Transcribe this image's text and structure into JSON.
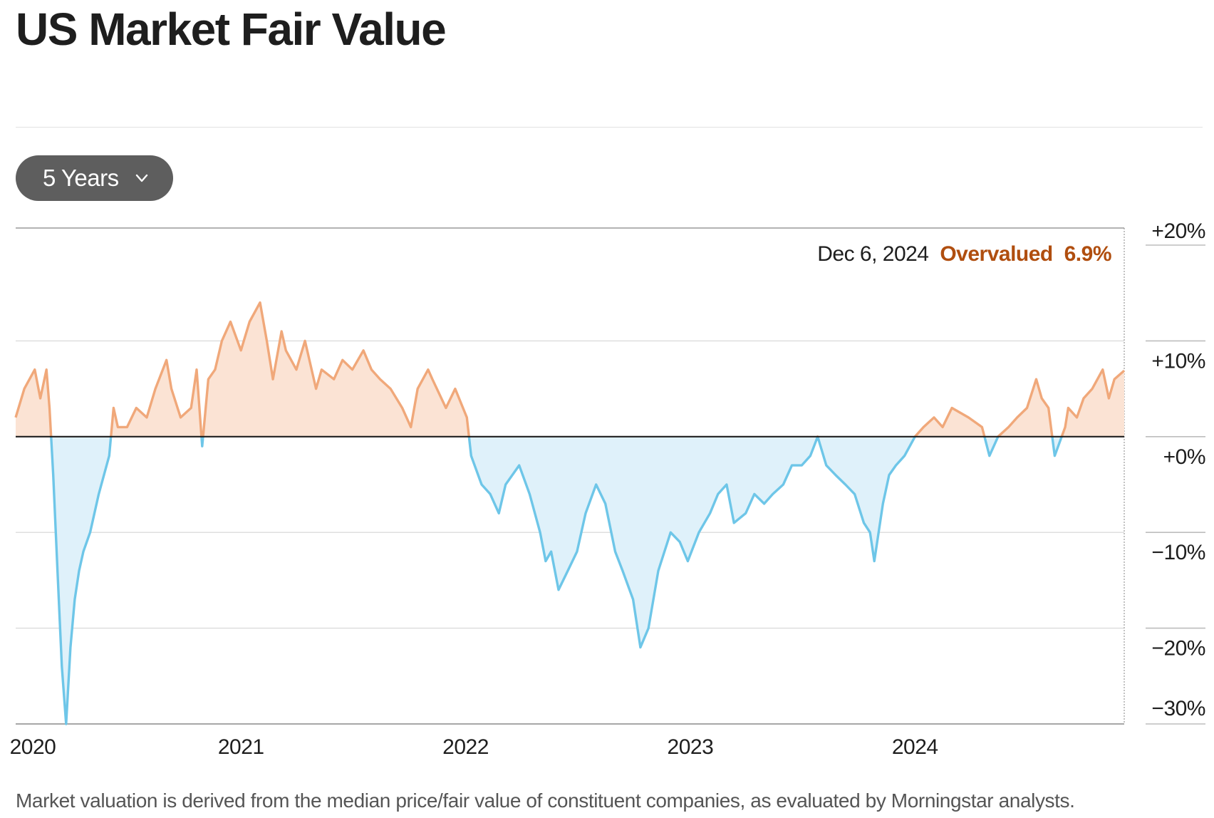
{
  "title": "US Market Fair Value",
  "range_selector": {
    "label": "5 Years",
    "icon": "chevron-down-icon"
  },
  "footnote": "Market valuation is derived from the median price/fair value of constituent companies, as evaluated by Morningstar analysts.",
  "colors": {
    "overvalued_line": "#f0a87a",
    "overvalued_fill": "#fbe3d4",
    "undervalued_line": "#6ec6e8",
    "undervalued_fill": "#dff1fa",
    "annotation_status": "#b04e0f",
    "baseline": "#1e1e1e"
  },
  "chart_data": {
    "type": "area",
    "title": "US Market Fair Value",
    "xlabel": "",
    "ylabel": "",
    "y_unit": "%",
    "ylim": [
      -30,
      20
    ],
    "xlim": [
      "2020-01-01",
      "2024-12-06"
    ],
    "grid": true,
    "x_ticks": [
      "2020",
      "2021",
      "2022",
      "2023",
      "2024"
    ],
    "y_ticks": [
      "+20%",
      "+10%",
      "+0%",
      "−10%",
      "−20%",
      "−30%"
    ],
    "annotation": {
      "date": "Dec 6, 2024",
      "status": "Overvalued",
      "value": "6.9%"
    },
    "series": [
      {
        "x": [
          "2020-01-01",
          "2020-01-15",
          "2020-02-01",
          "2020-02-10",
          "2020-02-20",
          "2020-02-25",
          "2020-03-02",
          "2020-03-09",
          "2020-03-16",
          "2020-03-23",
          "2020-03-30",
          "2020-04-06",
          "2020-04-13",
          "2020-04-20",
          "2020-05-01",
          "2020-05-15",
          "2020-06-01",
          "2020-06-08",
          "2020-06-15",
          "2020-06-30",
          "2020-07-15",
          "2020-08-01",
          "2020-08-15",
          "2020-09-02",
          "2020-09-10",
          "2020-09-25",
          "2020-10-12",
          "2020-10-21",
          "2020-10-30",
          "2020-11-09",
          "2020-11-20",
          "2020-12-01",
          "2020-12-15",
          "2021-01-01",
          "2021-01-15",
          "2021-02-01",
          "2021-02-12",
          "2021-02-22",
          "2021-03-08",
          "2021-03-15",
          "2021-04-01",
          "2021-04-15",
          "2021-05-03",
          "2021-05-12",
          "2021-06-01",
          "2021-06-15",
          "2021-07-01",
          "2021-07-19",
          "2021-08-01",
          "2021-08-15",
          "2021-09-01",
          "2021-09-20",
          "2021-10-04",
          "2021-10-15",
          "2021-11-01",
          "2021-11-08",
          "2021-11-30",
          "2021-12-15",
          "2022-01-03",
          "2022-01-10",
          "2022-01-27",
          "2022-02-10",
          "2022-02-24",
          "2022-03-07",
          "2022-03-29",
          "2022-04-15",
          "2022-05-02",
          "2022-05-11",
          "2022-05-20",
          "2022-06-01",
          "2022-06-16",
          "2022-07-01",
          "2022-07-15",
          "2022-08-01",
          "2022-08-16",
          "2022-09-01",
          "2022-09-13",
          "2022-09-30",
          "2022-10-12",
          "2022-10-25",
          "2022-11-10",
          "2022-11-30",
          "2022-12-15",
          "2022-12-28",
          "2023-01-15",
          "2023-02-02",
          "2023-02-15",
          "2023-03-01",
          "2023-03-13",
          "2023-04-01",
          "2023-04-15",
          "2023-05-01",
          "2023-05-15",
          "2023-06-01",
          "2023-06-15",
          "2023-07-01",
          "2023-07-15",
          "2023-07-27",
          "2023-08-10",
          "2023-08-25",
          "2023-09-10",
          "2023-09-25",
          "2023-10-10",
          "2023-10-20",
          "2023-10-27",
          "2023-11-10",
          "2023-11-20",
          "2023-12-01",
          "2023-12-15",
          "2024-01-01",
          "2024-01-15",
          "2024-02-01",
          "2024-02-15",
          "2024-03-01",
          "2024-03-28",
          "2024-04-19",
          "2024-05-01",
          "2024-05-15",
          "2024-06-01",
          "2024-06-15",
          "2024-07-01",
          "2024-07-16",
          "2024-07-25",
          "2024-08-05",
          "2024-08-15",
          "2024-09-01",
          "2024-09-06",
          "2024-09-20",
          "2024-10-01",
          "2024-10-15",
          "2024-11-01",
          "2024-11-11",
          "2024-11-20",
          "2024-12-06"
        ],
        "values": [
          2,
          5,
          7,
          4,
          7,
          3,
          -4,
          -14,
          -24,
          -30,
          -22,
          -17,
          -14,
          -12,
          -10,
          -6,
          -2,
          3,
          1,
          1,
          3,
          2,
          5,
          8,
          5,
          2,
          3,
          7,
          -1,
          6,
          7,
          10,
          12,
          9,
          12,
          14,
          10,
          6,
          11,
          9,
          7,
          10,
          5,
          7,
          6,
          8,
          7,
          9,
          7,
          6,
          5,
          3,
          1,
          5,
          7,
          6,
          3,
          5,
          2,
          -2,
          -5,
          -6,
          -8,
          -5,
          -3,
          -6,
          -10,
          -13,
          -12,
          -16,
          -14,
          -12,
          -8,
          -5,
          -7,
          -12,
          -14,
          -17,
          -22,
          -20,
          -14,
          -10,
          -11,
          -13,
          -10,
          -8,
          -6,
          -5,
          -9,
          -8,
          -6,
          -7,
          -6,
          -5,
          -3,
          -3,
          -2,
          0,
          -3,
          -4,
          -5,
          -6,
          -9,
          -10,
          -13,
          -7,
          -4,
          -3,
          -2,
          0,
          1,
          2,
          1,
          3,
          2,
          1,
          -2,
          0,
          1,
          2,
          3,
          6,
          4,
          3,
          -2,
          1,
          3,
          2,
          4,
          5,
          7,
          4,
          6,
          6.9
        ]
      }
    ]
  }
}
